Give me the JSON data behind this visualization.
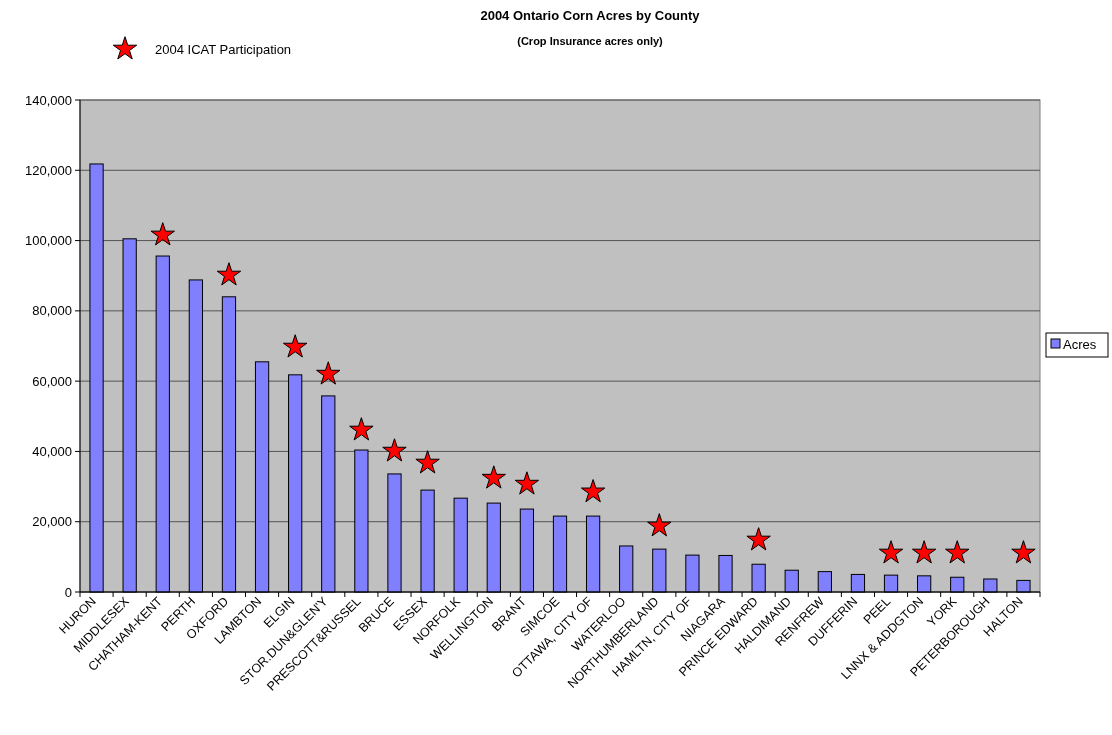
{
  "chart_data": {
    "type": "bar",
    "title": "2004 Ontario Corn Acres by County",
    "subtitle": "(Crop Insurance acres only)",
    "categories": [
      "HURON",
      "MIDDLESEX",
      "CHATHAM-KENT",
      "PERTH",
      "OXFORD",
      "LAMBTON",
      "ELGIN",
      "STOR.DUN&GLEN'Y",
      "PRESCOTT&RUSSEL",
      "BRUCE",
      "ESSEX",
      "NORFOLK",
      "WELLINGTON",
      "BRANT",
      "SIMCOE",
      "OTTAWA, CITY OF",
      "WATERLOO",
      "NORTHUMBERLAND",
      "HAMLTN, CITY OF",
      "NIAGARA",
      "PRINCE EDWARD",
      "HALDIMAND",
      "RENFREW",
      "DUFFERIN",
      "PEEL",
      "LNNX & ADDGTON",
      "YORK",
      "PETERBOROUGH",
      "HALTON"
    ],
    "series": [
      {
        "name": "Acres",
        "color": "#8080ff",
        "values": [
          121800,
          100500,
          95600,
          88800,
          84000,
          65500,
          61800,
          55800,
          40400,
          33600,
          29000,
          26700,
          25300,
          23600,
          21600,
          21600,
          13100,
          12200,
          10500,
          10400,
          7900,
          6200,
          5800,
          5000,
          4800,
          4600,
          4200,
          3700,
          3300
        ]
      },
      {
        "name": "2004 ICAT Participation",
        "type": "scatter",
        "marker": "star",
        "color": "#ff0000",
        "x": [
          "CHATHAM-KENT",
          "OXFORD",
          "ELGIN",
          "STOR.DUN&GLEN'Y",
          "PRESCOTT&RUSSEL",
          "BRUCE",
          "ESSEX",
          "WELLINGTON",
          "BRANT",
          "OTTAWA, CITY OF",
          "NORTHUMBERLAND",
          "PRINCE EDWARD",
          "PEEL",
          "LNNX & ADDGTON",
          "YORK",
          "HALTON"
        ],
        "values": [
          101600,
          90200,
          69700,
          62000,
          46100,
          40100,
          36700,
          32400,
          30700,
          28500,
          18800,
          14800,
          11100,
          11100,
          11100,
          11100
        ]
      }
    ],
    "ylim": [
      0,
      140000
    ],
    "yticks": [
      {
        "value": 0,
        "label": "0"
      },
      {
        "value": 20000,
        "label": "20,000"
      },
      {
        "value": 40000,
        "label": "40,000"
      },
      {
        "value": 60000,
        "label": "60,000"
      },
      {
        "value": 80000,
        "label": "80,000"
      },
      {
        "value": 100000,
        "label": "100,000"
      },
      {
        "value": 120000,
        "label": "120,000"
      },
      {
        "value": 140000,
        "label": "140,000"
      }
    ],
    "grid": "y",
    "legend": "right"
  }
}
